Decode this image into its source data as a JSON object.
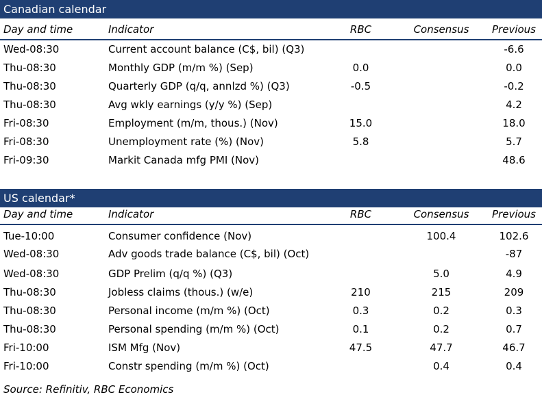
{
  "canadian": {
    "title": "Canadian calendar",
    "headers": {
      "day": "Day and time",
      "indicator": "Indicator",
      "rbc": "RBC",
      "consensus": "Consensus",
      "previous": "Previous"
    },
    "rows": [
      {
        "day": "Wed-08:30",
        "indicator": "Current account balance (C$, bil) (Q3)",
        "rbc": "",
        "consensus": "",
        "previous": "-6.6"
      },
      {
        "day": "Thu-08:30",
        "indicator": "Monthly GDP (m/m %) (Sep)",
        "rbc": "0.0",
        "consensus": "",
        "previous": "0.0"
      },
      {
        "day": "Thu-08:30",
        "indicator": "Quarterly GDP (q/q, annlzd %) (Q3)",
        "rbc": "-0.5",
        "consensus": "",
        "previous": "-0.2"
      },
      {
        "day": "Thu-08:30",
        "indicator": "Avg wkly earnings (y/y %) (Sep)",
        "rbc": "",
        "consensus": "",
        "previous": "4.2"
      },
      {
        "day": "Fri-08:30",
        "indicator": "Employment (m/m, thous.) (Nov)",
        "rbc": "15.0",
        "consensus": "",
        "previous": "18.0"
      },
      {
        "day": "Fri-08:30",
        "indicator": "Unemployment rate (%) (Nov)",
        "rbc": "5.8",
        "consensus": "",
        "previous": "5.7"
      },
      {
        "day": "Fri-09:30",
        "indicator": "Markit Canada mfg PMI (Nov)",
        "rbc": "",
        "consensus": "",
        "previous": "48.6"
      }
    ]
  },
  "us": {
    "title": "US calendar*",
    "headers": {
      "day": "Day and time",
      "indicator": "Indicator",
      "rbc": "RBC",
      "consensus": "Consensus",
      "previous": "Previous"
    },
    "rows": [
      {
        "day": "Tue-10:00",
        "indicator": "Consumer confidence (Nov)",
        "rbc": "",
        "consensus": "100.4",
        "previous": "102.6"
      },
      {
        "day": "Wed-08:30",
        "indicator": "Adv goods trade balance (C$, bil) (Oct)",
        "rbc": "",
        "consensus": "",
        "previous": "-87"
      },
      {
        "day": "Wed-08:30",
        "indicator": "GDP Prelim (q/q %) (Q3)",
        "rbc": "",
        "consensus": "5.0",
        "previous": "4.9"
      },
      {
        "day": "Thu-08:30",
        "indicator": "Jobless claims (thous.) (w/e)",
        "rbc": "210",
        "consensus": "215",
        "previous": "209"
      },
      {
        "day": "Thu-08:30",
        "indicator": "Personal income (m/m %) (Oct)",
        "rbc": "0.3",
        "consensus": "0.2",
        "previous": "0.3"
      },
      {
        "day": "Thu-08:30",
        "indicator": "Personal spending (m/m %) (Oct)",
        "rbc": "0.1",
        "consensus": "0.2",
        "previous": "0.7"
      },
      {
        "day": "Fri-10:00",
        "indicator": "ISM Mfg (Nov)",
        "rbc": "47.5",
        "consensus": "47.7",
        "previous": "46.7"
      },
      {
        "day": "Fri-10:00",
        "indicator": "Constr spending (m/m %) (Oct)",
        "rbc": "",
        "consensus": "0.4",
        "previous": "0.4"
      }
    ]
  },
  "source": "Source: Refinitiv,  RBC Economics",
  "colors": {
    "banner": "#1f3f73",
    "banner_text": "#ffffff"
  }
}
